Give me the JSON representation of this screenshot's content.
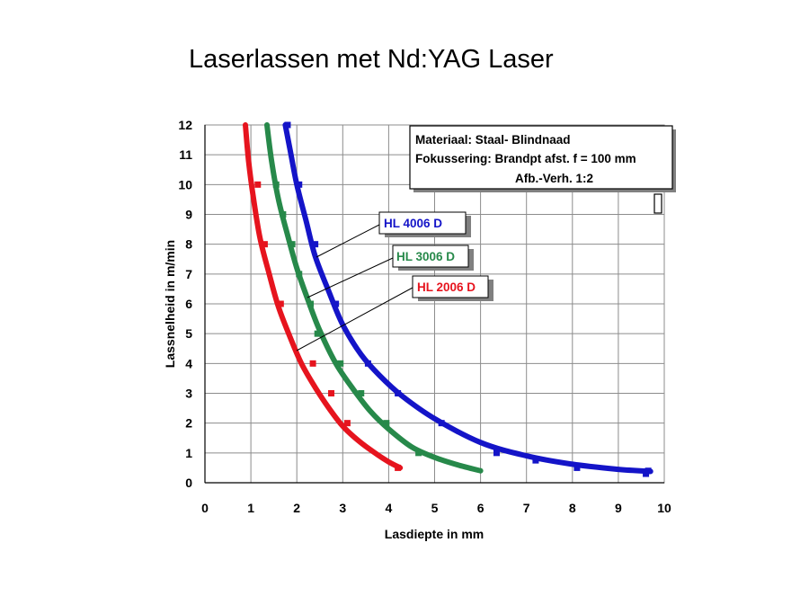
{
  "title": "Laserlassen met Nd:YAG Laser",
  "chart_data": {
    "type": "line",
    "xlabel": "Lasdiepte in mm",
    "ylabel": "Lassnelheid in m/min",
    "xlim": [
      0,
      10
    ],
    "ylim": [
      0,
      12
    ],
    "xticks": [
      "0",
      "1",
      "2",
      "3",
      "4",
      "5",
      "6",
      "7",
      "8",
      "9",
      "10"
    ],
    "yticks": [
      "0",
      "1",
      "2",
      "3",
      "4",
      "5",
      "6",
      "7",
      "8",
      "9",
      "10",
      "11",
      "12"
    ],
    "grid": true,
    "info_box": [
      "Materiaal:  Staal- Blindnaad",
      "Fokussering: Brandpt afst.  f = 100 mm",
      "Afb.-Verh. 1:2"
    ],
    "series": [
      {
        "name": "HL 4006 D",
        "color": "#1414c8",
        "curve_x": [
          1.75,
          1.85,
          2.0,
          2.2,
          2.4,
          2.7,
          3.0,
          3.4,
          3.8,
          4.3,
          5.0,
          6.0,
          7.0,
          8.0,
          9.0,
          9.7
        ],
        "curve_y": [
          12,
          11.2,
          10.0,
          8.8,
          7.6,
          6.4,
          5.3,
          4.3,
          3.6,
          2.9,
          2.15,
          1.35,
          0.9,
          0.62,
          0.45,
          0.38
        ],
        "points_x": [
          1.8,
          2.05,
          2.4,
          2.85,
          3.55,
          4.2,
          5.15,
          6.35,
          7.2,
          8.1,
          9.6,
          9.65
        ],
        "points_y": [
          12,
          10,
          8,
          6,
          4,
          3,
          2,
          1,
          0.75,
          0.5,
          0.3,
          0.4
        ]
      },
      {
        "name": "HL 3006 D",
        "color": "#27894a",
        "curve_x": [
          1.35,
          1.45,
          1.6,
          1.8,
          2.0,
          2.25,
          2.5,
          2.85,
          3.2,
          3.6,
          4.0,
          4.5,
          5.0,
          5.5,
          6.0
        ],
        "curve_y": [
          12,
          10.8,
          9.5,
          8.3,
          7.2,
          6.1,
          5.1,
          4.0,
          3.2,
          2.4,
          1.8,
          1.2,
          0.85,
          0.6,
          0.4
        ],
        "points_x": [
          1.55,
          1.7,
          1.9,
          2.05,
          2.3,
          2.45,
          2.95,
          3.4,
          3.95,
          4.65
        ],
        "points_y": [
          10,
          9,
          8,
          7,
          6,
          5,
          4,
          3,
          2,
          1
        ]
      },
      {
        "name": "HL 2006 D",
        "color": "#e6141e",
        "curve_x": [
          0.88,
          0.95,
          1.05,
          1.2,
          1.4,
          1.6,
          1.85,
          2.1,
          2.4,
          2.7,
          3.0,
          3.35,
          3.7,
          4.0,
          4.25
        ],
        "curve_y": [
          12,
          10.8,
          9.6,
          8.2,
          7.0,
          5.9,
          4.9,
          4.0,
          3.2,
          2.5,
          1.9,
          1.4,
          1.0,
          0.7,
          0.5
        ],
        "points_x": [
          1.15,
          1.3,
          1.65,
          2.35,
          2.75,
          3.1,
          4.2
        ],
        "points_y": [
          10,
          8,
          6,
          4,
          3,
          2,
          0.5
        ]
      }
    ]
  }
}
